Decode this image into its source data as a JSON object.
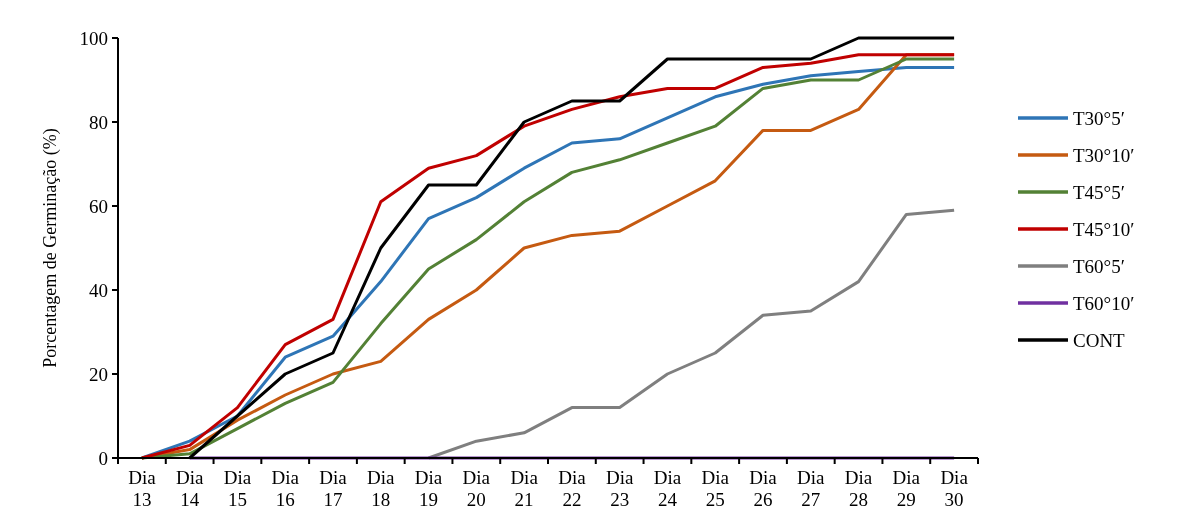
{
  "chart_data": {
    "type": "line",
    "ylabel": "Porcentagem de Germinação (%)",
    "categories": [
      "Dia 13",
      "Dia 14",
      "Dia 15",
      "Dia 16",
      "Dia 17",
      "Dia 18",
      "Dia 19",
      "Dia 20",
      "Dia 21",
      "Dia 22",
      "Dia 23",
      "Dia 24",
      "Dia 25",
      "Dia 26",
      "Dia 27",
      "Dia 28",
      "Dia 29",
      "Dia 30"
    ],
    "ylim": [
      0,
      100
    ],
    "yticks": [
      0,
      20,
      40,
      60,
      80,
      100
    ],
    "grid": false,
    "legend": "right",
    "marker": "none",
    "line_style": "solid",
    "series": [
      {
        "name": "T30°5′",
        "color": "#2e75b6",
        "values": [
          0,
          4,
          10,
          24,
          29,
          42,
          57,
          62,
          69,
          75,
          76,
          81,
          86,
          89,
          91,
          92,
          93,
          93
        ]
      },
      {
        "name": "T30°10′",
        "color": "#c55a11",
        "values": [
          0,
          2,
          9,
          15,
          20,
          23,
          33,
          40,
          50,
          53,
          54,
          60,
          66,
          78,
          78,
          83,
          96,
          96
        ]
      },
      {
        "name": "T45°5′",
        "color": "#538135",
        "values": [
          0,
          1,
          7,
          13,
          18,
          32,
          45,
          52,
          61,
          68,
          71,
          75,
          79,
          88,
          90,
          90,
          95,
          95
        ]
      },
      {
        "name": "T45°10′",
        "color": "#c00000",
        "values": [
          0,
          3,
          12,
          27,
          33,
          61,
          69,
          72,
          79,
          83,
          86,
          88,
          88,
          93,
          94,
          96,
          96,
          96
        ]
      },
      {
        "name": "T60°5′",
        "color": "#7f7f7f",
        "values": [
          null,
          null,
          null,
          null,
          null,
          null,
          0,
          4,
          6,
          12,
          12,
          20,
          25,
          34,
          35,
          42,
          58,
          59
        ]
      },
      {
        "name": "T60°10′",
        "color": "#7030a0",
        "values": [
          null,
          0,
          0,
          0,
          0,
          0,
          0,
          0,
          0,
          0,
          0,
          0,
          0,
          0,
          0,
          0,
          0,
          0
        ]
      },
      {
        "name": "CONT",
        "color": "#000000",
        "values": [
          null,
          0,
          10,
          20,
          25,
          50,
          65,
          65,
          80,
          85,
          85,
          95,
          95,
          95,
          95,
          100,
          100,
          100
        ]
      }
    ]
  }
}
